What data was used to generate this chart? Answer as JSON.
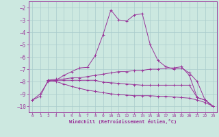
{
  "xlabel": "Windchill (Refroidissement éolien,°C)",
  "bg_color": "#cce8e0",
  "grid_color": "#aacccc",
  "line_color": "#993399",
  "xlim": [
    -0.5,
    23.5
  ],
  "ylim": [
    -10.5,
    -1.5
  ],
  "xticks": [
    0,
    1,
    2,
    3,
    4,
    5,
    6,
    7,
    8,
    9,
    10,
    11,
    12,
    13,
    14,
    15,
    16,
    17,
    18,
    19,
    20,
    21,
    22,
    23
  ],
  "yticks": [
    -10,
    -9,
    -8,
    -7,
    -6,
    -5,
    -4,
    -3,
    -2
  ],
  "line1_x": [
    0,
    1,
    2,
    3,
    4,
    5,
    6,
    7,
    8,
    9,
    10,
    11,
    12,
    13,
    14,
    15,
    16,
    17,
    18,
    19,
    20,
    21,
    22,
    23
  ],
  "line1_y": [
    -9.5,
    -9.0,
    -8.0,
    -7.9,
    -7.5,
    -7.2,
    -6.9,
    -6.85,
    -5.9,
    -4.2,
    -2.2,
    -3.0,
    -3.1,
    -2.6,
    -2.5,
    -5.0,
    -6.3,
    -6.8,
    -7.0,
    -6.9,
    -7.3,
    -8.0,
    -9.5,
    -10.0
  ],
  "line2_x": [
    2,
    3,
    4,
    5,
    6,
    7,
    8,
    9,
    10,
    11,
    12,
    13,
    14,
    15,
    16,
    17,
    18,
    19,
    20,
    21,
    22,
    23
  ],
  "line2_y": [
    -7.9,
    -7.8,
    -7.8,
    -7.7,
    -7.7,
    -7.6,
    -7.5,
    -7.4,
    -7.3,
    -7.2,
    -7.2,
    -7.1,
    -7.1,
    -7.0,
    -7.0,
    -6.9,
    -6.9,
    -6.8,
    -7.5,
    -9.3,
    -9.5,
    -10.0
  ],
  "line3_x": [
    2,
    3,
    4,
    5,
    6,
    7,
    8,
    9,
    10,
    11,
    12,
    13,
    14,
    15,
    16,
    17,
    18,
    19,
    20,
    21,
    22,
    23
  ],
  "line3_y": [
    -7.9,
    -7.9,
    -7.9,
    -7.9,
    -7.9,
    -7.9,
    -7.9,
    -8.05,
    -8.1,
    -8.15,
    -8.2,
    -8.25,
    -8.3,
    -8.3,
    -8.3,
    -8.3,
    -8.3,
    -8.3,
    -8.3,
    -9.3,
    -9.5,
    -10.0
  ],
  "line4_x": [
    0,
    1,
    2,
    3,
    4,
    5,
    6,
    7,
    8,
    9,
    10,
    11,
    12,
    13,
    14,
    15,
    16,
    17,
    18,
    19,
    20,
    21,
    22,
    23
  ],
  "line4_y": [
    -9.5,
    -9.2,
    -7.9,
    -8.0,
    -8.2,
    -8.4,
    -8.55,
    -8.7,
    -8.8,
    -8.9,
    -9.0,
    -9.05,
    -9.1,
    -9.15,
    -9.15,
    -9.15,
    -9.2,
    -9.2,
    -9.25,
    -9.3,
    -9.35,
    -9.5,
    -9.7,
    -10.0
  ]
}
